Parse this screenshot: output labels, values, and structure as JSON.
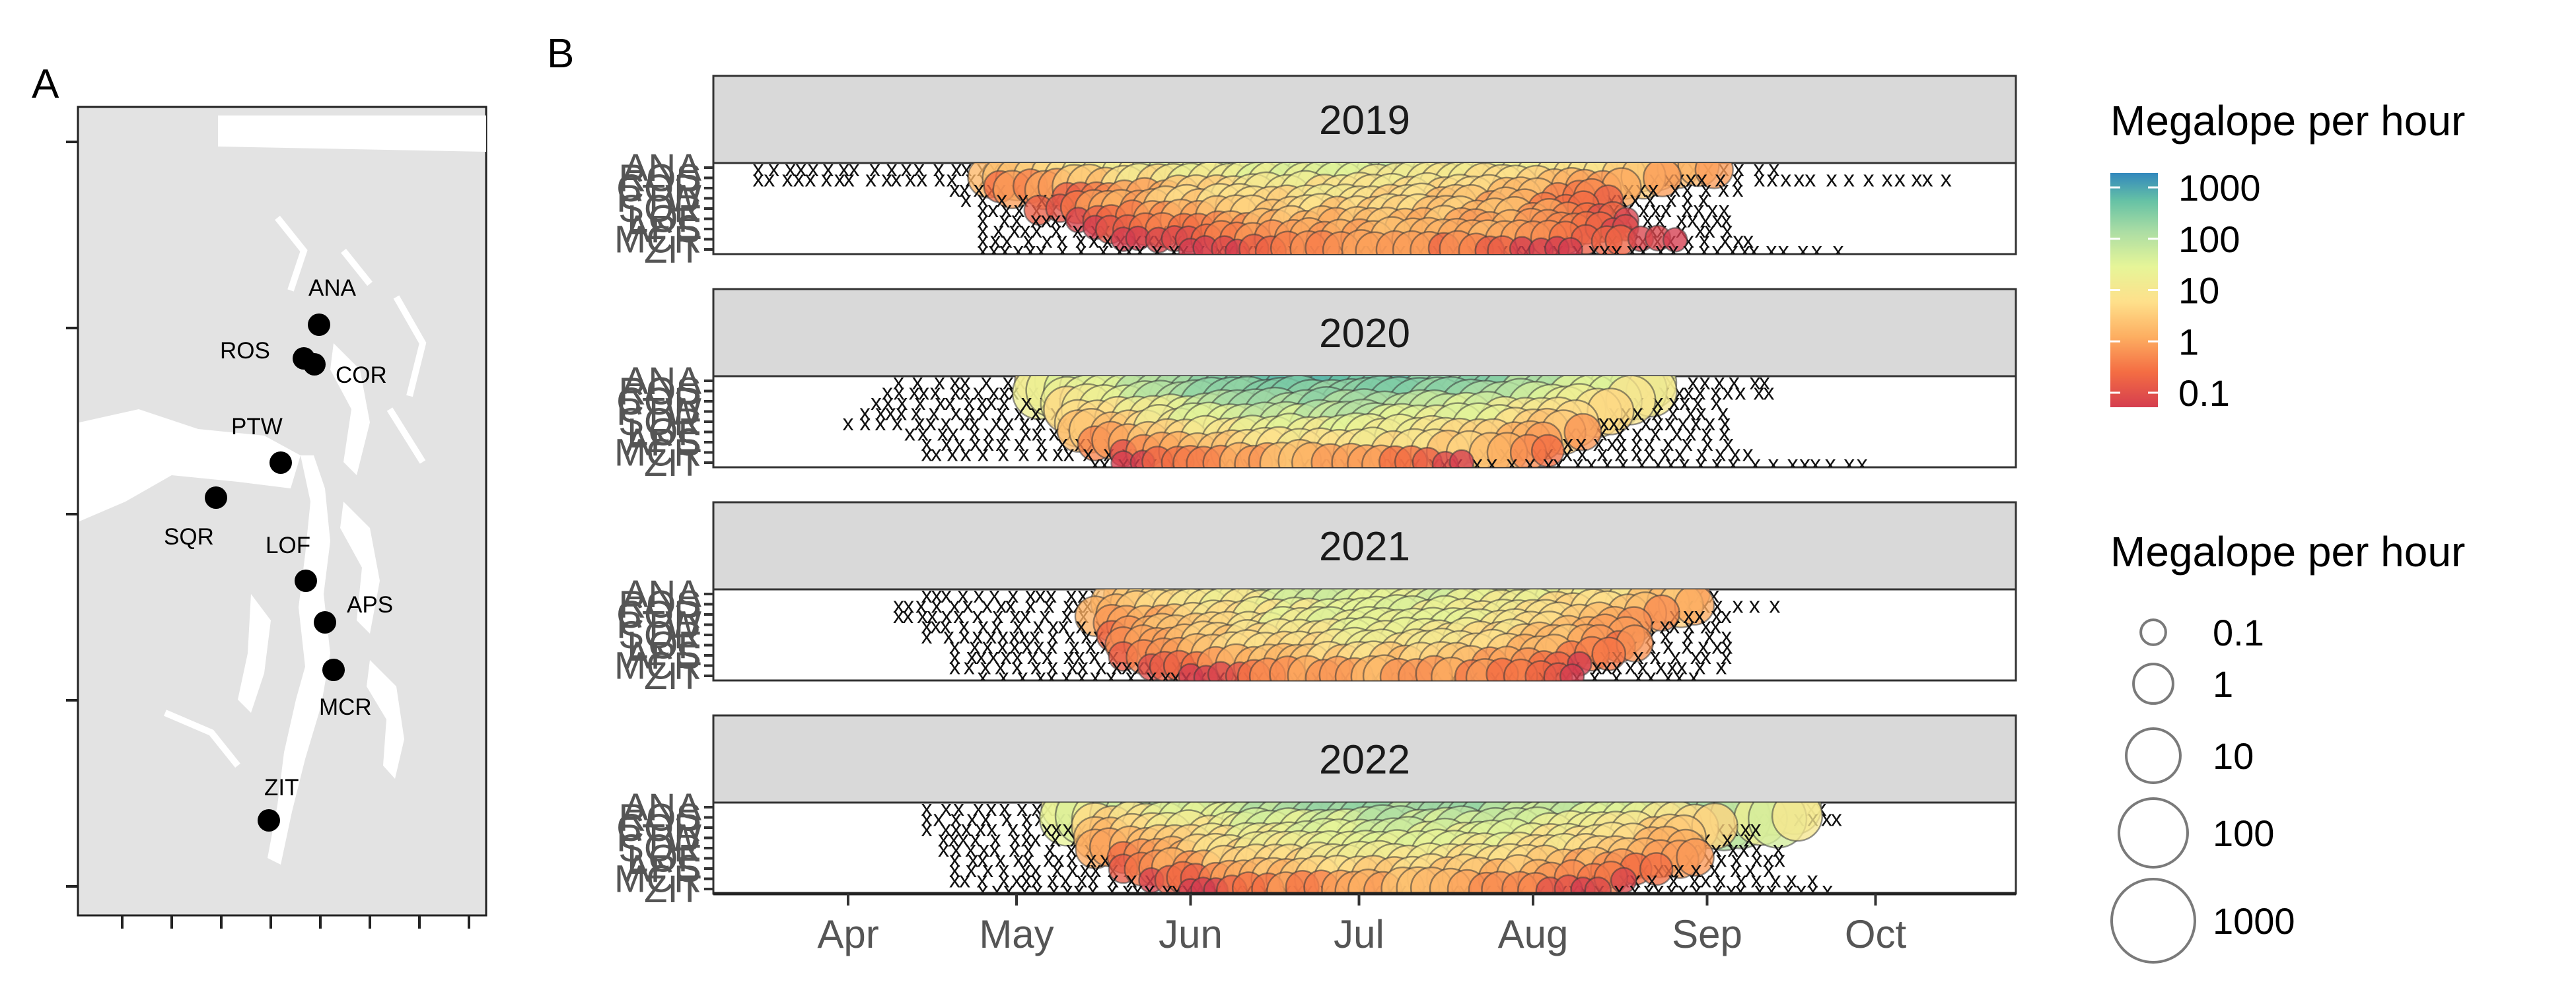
{
  "panel_a": {
    "tag": "A",
    "sites": [
      {
        "code": "ANA"
      },
      {
        "code": "ROS"
      },
      {
        "code": "COR"
      },
      {
        "code": "PTW"
      },
      {
        "code": "SQR"
      },
      {
        "code": "LOF"
      },
      {
        "code": "APS"
      },
      {
        "code": "MCR"
      },
      {
        "code": "ZIT"
      }
    ]
  },
  "panel_b": {
    "tag": "B",
    "color_legend": {
      "title": "Megalope per hour",
      "labels": [
        "1000",
        "100",
        "10",
        "1",
        "0.1"
      ],
      "values": [
        1000,
        100,
        10,
        1,
        0.1
      ]
    },
    "size_legend": {
      "title": "Megalope per hour",
      "labels": [
        "0.1",
        "1",
        "10",
        "100",
        "1000"
      ],
      "values": [
        0.1,
        1,
        10,
        100,
        1000
      ]
    },
    "palette": [
      "#d53e4f",
      "#f46d43",
      "#fdae61",
      "#fee08b",
      "#e6f598",
      "#abdda4",
      "#66c2a5",
      "#3288bd"
    ],
    "zero_marker": "x"
  },
  "chart_data": {
    "type": "scatter",
    "x_axis": {
      "ticks": [
        "Apr",
        "May",
        "Jun",
        "Jul",
        "Aug",
        "Sep",
        "Oct"
      ],
      "tick_dates": [
        "04-01",
        "05-01",
        "06-01",
        "07-01",
        "08-01",
        "09-01",
        "10-01"
      ],
      "xlim": [
        "03-08",
        "10-26"
      ]
    },
    "y_categories": [
      "ANA",
      "ROS",
      "COR",
      "PTW",
      "SQR",
      "LOF",
      "APS",
      "MCR",
      "ZIT"
    ],
    "color_scale": "log10, RdYlBu-like spectral, 0.1 to 1000",
    "panels": [
      {
        "year": "2019",
        "series": [
          {
            "site": "ANA",
            "zero_range": [
              "03-16",
              "09-15"
            ],
            "positive_range": [
              "05-01",
              "09-03"
            ],
            "peak": 30
          },
          {
            "site": "ROS",
            "zero_range": [
              "03-16",
              "10-16"
            ],
            "positive_range": [
              "04-26",
              "08-25"
            ],
            "peak": 50
          },
          {
            "site": "COR",
            "zero_range": [
              "04-20",
              "09-10"
            ],
            "positive_range": [
              "04-28",
              "08-20"
            ],
            "peak": 20
          },
          {
            "site": "PTW",
            "zero_range": [
              "04-22",
              "09-02"
            ],
            "positive_range": [
              "05-10",
              "08-15"
            ],
            "peak": 10
          },
          {
            "site": "SQR",
            "zero_range": [
              "04-25",
              "09-05"
            ],
            "positive_range": [
              "05-05",
              "08-10"
            ],
            "peak": 8
          },
          {
            "site": "LOF",
            "zero_range": [
              "04-25",
              "09-05"
            ],
            "positive_range": [
              "05-12",
              "08-18"
            ],
            "peak": 5
          },
          {
            "site": "APS",
            "zero_range": [
              "04-25",
              "09-05"
            ],
            "positive_range": [
              "05-15",
              "08-20"
            ],
            "peak": 3
          },
          {
            "site": "MCR",
            "zero_range": [
              "04-25",
              "09-10"
            ],
            "positive_range": [
              "05-20",
              "08-28"
            ],
            "peak": 2
          },
          {
            "site": "ZIT",
            "zero_range": [
              "04-25",
              "09-25"
            ],
            "positive_range": [
              "06-01",
              "08-10"
            ],
            "peak": 1
          }
        ]
      },
      {
        "year": "2020",
        "series": [
          {
            "site": "ANA",
            "zero_range": [
              "04-10",
              "09-12"
            ],
            "positive_range": [
              "05-05",
              "08-25"
            ],
            "peak": 200
          },
          {
            "site": "ROS",
            "zero_range": [
              "04-08",
              "09-12"
            ],
            "positive_range": [
              "05-05",
              "08-25"
            ],
            "peak": 400
          },
          {
            "site": "COR",
            "zero_range": [
              "04-06",
              "09-05"
            ],
            "positive_range": [
              "05-10",
              "08-20"
            ],
            "peak": 300
          },
          {
            "site": "PTW",
            "zero_range": [
              "04-04",
              "09-05"
            ],
            "positive_range": [
              "05-10",
              "08-15"
            ],
            "peak": 200
          },
          {
            "site": "SQR",
            "zero_range": [
              "04-01",
              "09-05"
            ],
            "positive_range": [
              "05-12",
              "08-10"
            ],
            "peak": 100
          },
          {
            "site": "LOF",
            "zero_range": [
              "04-12",
              "09-05"
            ],
            "positive_range": [
              "05-12",
              "08-10"
            ],
            "peak": 50
          },
          {
            "site": "APS",
            "zero_range": [
              "04-15",
              "09-05"
            ],
            "positive_range": [
              "05-15",
              "08-05"
            ],
            "peak": 20
          },
          {
            "site": "MCR",
            "zero_range": [
              "04-15",
              "09-10"
            ],
            "positive_range": [
              "05-20",
              "08-05"
            ],
            "peak": 10
          },
          {
            "site": "ZIT",
            "zero_range": [
              "05-15",
              "09-30"
            ],
            "positive_range": [
              "05-20",
              "07-20"
            ],
            "peak": 2
          }
        ]
      },
      {
        "year": "2021",
        "series": [
          {
            "site": "ANA",
            "zero_range": [
              "04-15",
              "09-05"
            ],
            "positive_range": [
              "05-20",
              "08-30"
            ],
            "peak": 30
          },
          {
            "site": "ROS",
            "zero_range": [
              "04-10",
              "09-15"
            ],
            "positive_range": [
              "05-18",
              "08-30"
            ],
            "peak": 50
          },
          {
            "site": "COR",
            "zero_range": [
              "04-10",
              "09-05"
            ],
            "positive_range": [
              "05-15",
              "08-25"
            ],
            "peak": 30
          },
          {
            "site": "PTW",
            "zero_range": [
              "04-15",
              "09-05"
            ],
            "positive_range": [
              "05-18",
              "08-20"
            ],
            "peak": 20
          },
          {
            "site": "SQR",
            "zero_range": [
              "04-15",
              "09-05"
            ],
            "positive_range": [
              "05-18",
              "08-20"
            ],
            "peak": 20
          },
          {
            "site": "LOF",
            "zero_range": [
              "04-20",
              "09-05"
            ],
            "positive_range": [
              "05-20",
              "08-20"
            ],
            "peak": 15
          },
          {
            "site": "APS",
            "zero_range": [
              "04-20",
              "09-05"
            ],
            "positive_range": [
              "05-20",
              "08-15"
            ],
            "peak": 10
          },
          {
            "site": "MCR",
            "zero_range": [
              "04-20",
              "09-05"
            ],
            "positive_range": [
              "05-25",
              "08-10"
            ],
            "peak": 5
          },
          {
            "site": "ZIT",
            "zero_range": [
              "04-25",
              "09-01"
            ],
            "positive_range": [
              "06-01",
              "08-10"
            ],
            "peak": 2
          }
        ]
      },
      {
        "year": "2022",
        "series": [
          {
            "site": "ANA",
            "zero_range": [
              "04-15",
              "09-25"
            ],
            "positive_range": [
              "05-10",
              "09-20"
            ],
            "peak": 300
          },
          {
            "site": "ROS",
            "zero_range": [
              "04-15",
              "09-25"
            ],
            "positive_range": [
              "05-10",
              "09-18"
            ],
            "peak": 400
          },
          {
            "site": "COR",
            "zero_range": [
              "04-15",
              "09-10"
            ],
            "positive_range": [
              "05-15",
              "09-05"
            ],
            "peak": 100
          },
          {
            "site": "PTW",
            "zero_range": [
              "04-18",
              "09-10"
            ],
            "positive_range": [
              "05-15",
              "08-30"
            ],
            "peak": 50
          },
          {
            "site": "SQR",
            "zero_range": [
              "04-18",
              "09-15"
            ],
            "positive_range": [
              "05-15",
              "08-30"
            ],
            "peak": 30
          },
          {
            "site": "LOF",
            "zero_range": [
              "04-20",
              "09-15"
            ],
            "positive_range": [
              "05-20",
              "08-30"
            ],
            "peak": 20
          },
          {
            "site": "APS",
            "zero_range": [
              "04-20",
              "09-15"
            ],
            "positive_range": [
              "05-20",
              "08-25"
            ],
            "peak": 10
          },
          {
            "site": "MCR",
            "zero_range": [
              "04-20",
              "09-20"
            ],
            "positive_range": [
              "05-25",
              "08-20"
            ],
            "peak": 5
          },
          {
            "site": "ZIT",
            "zero_range": [
              "04-25",
              "09-25"
            ],
            "positive_range": [
              "06-01",
              "08-15"
            ],
            "peak": 2
          }
        ]
      }
    ]
  }
}
